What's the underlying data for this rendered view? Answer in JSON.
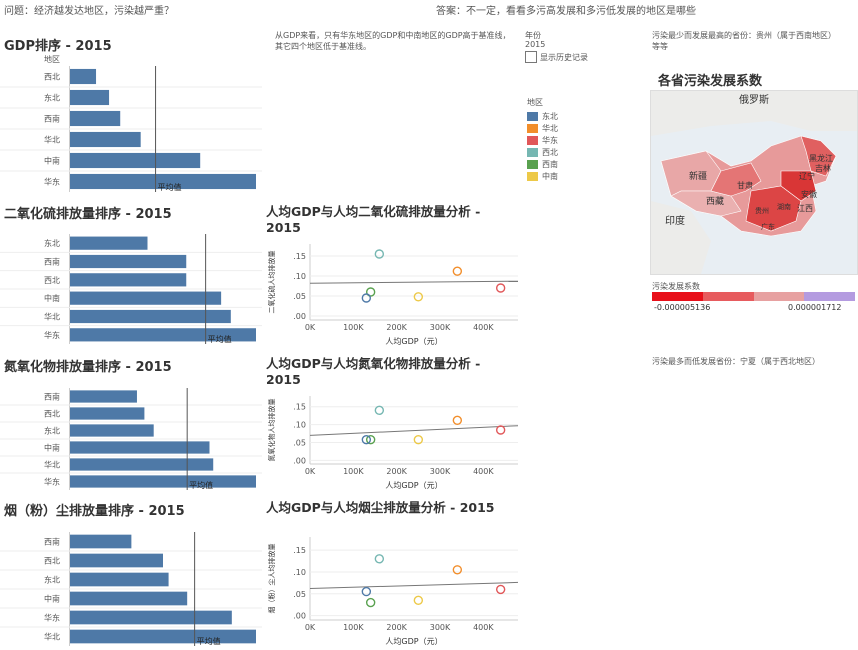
{
  "header": {
    "question": "问题：经济越发达地区，污染越严重？",
    "answer": "答案：不一定，看看多污高发展和多污低发展的地区是哪些"
  },
  "note_gdp": "从GDP来看，只有华东地区的GDP和中南地区的GDP高于基准线，其它四个地区低于基准线。",
  "year_filter": {
    "label": "年份",
    "value": "2015",
    "checkbox_label": "显示历史记录"
  },
  "region_legend": {
    "title": "地区",
    "items": [
      {
        "name": "东北",
        "color": "#4e79a7"
      },
      {
        "name": "华北",
        "color": "#f28e2b"
      },
      {
        "name": "华东",
        "color": "#e15759"
      },
      {
        "name": "西北",
        "color": "#76b7b2"
      },
      {
        "name": "西南",
        "color": "#59a14f"
      },
      {
        "name": "中南",
        "color": "#edc948"
      }
    ]
  },
  "right_notes": {
    "most_polluted": "污染最少而发展最高的省份：贵州（属于西南地区）等等",
    "least_polluted": "污染最多而低发展省份：宁夏（属于西北地区）"
  },
  "map": {
    "title": "各省污染发展系数",
    "labels": [
      "俄罗斯",
      "新疆",
      "西藏",
      "印度",
      "甘肃",
      "黑龙江",
      "吉林",
      "辽宁",
      "安徽",
      "江西",
      "广东",
      "湖南",
      "贵州"
    ],
    "legend_title": "污染发展系数",
    "legend_min": "-0.000005136",
    "legend_max": "0.000001712"
  },
  "chart_data": [
    {
      "type": "bar",
      "title": "GDP排序 - 2015",
      "axis_header": "地区",
      "categories": [
        "西北",
        "东北",
        "西南",
        "华北",
        "中南",
        "华东"
      ],
      "values": [
        14,
        21,
        27,
        38,
        70,
        100
      ],
      "reference_line": 46,
      "reference_label": "平均值"
    },
    {
      "type": "bar",
      "title": "二氧化硫排放量排序 - 2015",
      "categories": [
        "东北",
        "西南",
        "西北",
        "中南",
        "华北",
        "华东"
      ],
      "values": [
        40,
        60,
        60,
        78,
        83,
        96
      ],
      "reference_line": 70,
      "reference_label": "平均值"
    },
    {
      "type": "bar",
      "title": "氮氧化物排放量排序 - 2015",
      "categories": [
        "西南",
        "西北",
        "东北",
        "中南",
        "华北",
        "华东"
      ],
      "values": [
        36,
        40,
        45,
        75,
        77,
        100
      ],
      "reference_line": 63,
      "reference_label": "平均值"
    },
    {
      "type": "bar",
      "title": "烟（粉）尘排放量排序 - 2015",
      "categories": [
        "西南",
        "西北",
        "东北",
        "中南",
        "华东",
        "华北"
      ],
      "values": [
        33,
        50,
        53,
        63,
        87,
        100
      ],
      "reference_line": 67,
      "reference_label": "平均值"
    },
    {
      "type": "scatter",
      "title": "人均GDP与人均二氧化硫排放量分析 - 2015",
      "xlabel": "人均GDP（元）",
      "ylabel": "二氧化硫人均排放量",
      "xticks": [
        "0K",
        "100K",
        "200K",
        "300K",
        "400K"
      ],
      "yticks": [
        ".00",
        ".05",
        ".10",
        ".15"
      ],
      "xlim": [
        0,
        480000
      ],
      "ylim": [
        -0.01,
        0.18
      ],
      "trend": [
        [
          0,
          0.082
        ],
        [
          480000,
          0.087
        ]
      ],
      "points": [
        {
          "region": "西北",
          "x": 160000,
          "y": 0.155,
          "color": "#76b7b2"
        },
        {
          "region": "华北",
          "x": 340000,
          "y": 0.112,
          "color": "#f28e2b"
        },
        {
          "region": "华东",
          "x": 440000,
          "y": 0.07,
          "color": "#e15759"
        },
        {
          "region": "西南",
          "x": 140000,
          "y": 0.06,
          "color": "#59a14f"
        },
        {
          "region": "东北",
          "x": 130000,
          "y": 0.045,
          "color": "#4e79a7"
        },
        {
          "region": "中南",
          "x": 250000,
          "y": 0.048,
          "color": "#edc948"
        }
      ]
    },
    {
      "type": "scatter",
      "title": "人均GDP与人均氮氧化物排放量分析 - 2015",
      "xlabel": "人均GDP（元）",
      "ylabel": "氮氧化物人均排放量",
      "xticks": [
        "0K",
        "100K",
        "200K",
        "300K",
        "400K"
      ],
      "yticks": [
        ".00",
        ".05",
        ".10",
        ".15"
      ],
      "xlim": [
        0,
        480000
      ],
      "ylim": [
        -0.01,
        0.18
      ],
      "trend": [
        [
          0,
          0.07
        ],
        [
          480000,
          0.097
        ]
      ],
      "points": [
        {
          "region": "西北",
          "x": 160000,
          "y": 0.14,
          "color": "#76b7b2"
        },
        {
          "region": "华北",
          "x": 340000,
          "y": 0.112,
          "color": "#f28e2b"
        },
        {
          "region": "华东",
          "x": 440000,
          "y": 0.085,
          "color": "#e15759"
        },
        {
          "region": "西南",
          "x": 140000,
          "y": 0.058,
          "color": "#59a14f"
        },
        {
          "region": "东北",
          "x": 130000,
          "y": 0.058,
          "color": "#4e79a7"
        },
        {
          "region": "中南",
          "x": 250000,
          "y": 0.058,
          "color": "#edc948"
        }
      ]
    },
    {
      "type": "scatter",
      "title": "人均GDP与人均烟尘排放量分析 - 2015",
      "xlabel": "人均GDP（元）",
      "ylabel": "烟（粉）尘人均排放量",
      "xticks": [
        "0K",
        "100K",
        "200K",
        "300K",
        "400K"
      ],
      "yticks": [
        ".00",
        ".05",
        ".10",
        ".15"
      ],
      "xlim": [
        0,
        480000
      ],
      "ylim": [
        -0.01,
        0.18
      ],
      "trend": [
        [
          0,
          0.062
        ],
        [
          480000,
          0.076
        ]
      ],
      "points": [
        {
          "region": "西北",
          "x": 160000,
          "y": 0.13,
          "color": "#76b7b2"
        },
        {
          "region": "华北",
          "x": 340000,
          "y": 0.105,
          "color": "#f28e2b"
        },
        {
          "region": "华东",
          "x": 440000,
          "y": 0.06,
          "color": "#e15759"
        },
        {
          "region": "东北",
          "x": 130000,
          "y": 0.055,
          "color": "#4e79a7"
        },
        {
          "region": "中南",
          "x": 250000,
          "y": 0.035,
          "color": "#edc948"
        },
        {
          "region": "西南",
          "x": 140000,
          "y": 0.03,
          "color": "#59a14f"
        }
      ]
    }
  ]
}
